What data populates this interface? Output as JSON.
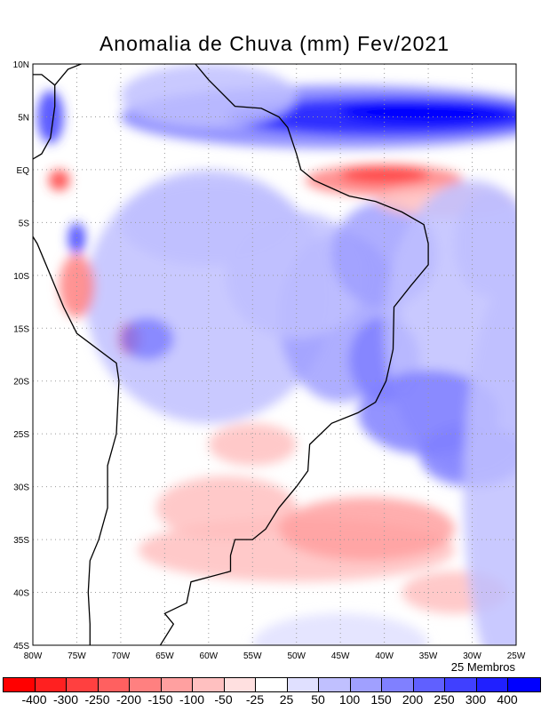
{
  "title": "Anomalia de Chuva (mm) Fev/2021",
  "members_label": "25 Membros",
  "lon_ticks": [
    "80W",
    "75W",
    "70W",
    "65W",
    "60W",
    "55W",
    "50W",
    "45W",
    "40W",
    "35W",
    "30W",
    "25W"
  ],
  "lat_ticks": [
    "10N",
    "5N",
    "EQ",
    "5S",
    "10S",
    "15S",
    "20S",
    "25S",
    "30S",
    "35S",
    "40S",
    "45S"
  ],
  "colorbar": {
    "labels": [
      "-400",
      "-300",
      "-250",
      "-200",
      "-150",
      "-100",
      "-50",
      "-25",
      "25",
      "50",
      "100",
      "150",
      "200",
      "250",
      "300",
      "400"
    ],
    "colors": [
      "#ff0000",
      "#ff2020",
      "#ff4040",
      "#ff6060",
      "#ff8080",
      "#ffa0a0",
      "#ffc0c0",
      "#ffe0e0",
      "#ffffff",
      "#e0e0ff",
      "#c0c0ff",
      "#a0a0ff",
      "#8080ff",
      "#6060ff",
      "#4040ff",
      "#2020ff",
      "#0000ff"
    ]
  }
}
